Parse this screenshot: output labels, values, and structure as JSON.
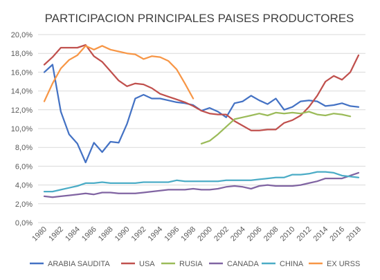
{
  "chart_data": {
    "type": "line",
    "title": "PARTICIPACION PRINCIPALES PAISES PRODUCTORES",
    "xlabel": "",
    "ylabel": "",
    "ylim": [
      0,
      20
    ],
    "ytick_labels": [
      "0,0%",
      "2,0%",
      "4,0%",
      "6,0%",
      "8,0%",
      "10,0%",
      "12,0%",
      "14,0%",
      "16,0%",
      "18,0%",
      "20,0%"
    ],
    "x_start": 1980,
    "x_end": 2018,
    "xtick_labels": [
      "1980",
      "1982",
      "1984",
      "1986",
      "1988",
      "1990",
      "1992",
      "1994",
      "1996",
      "1998",
      "2000",
      "2002",
      "2004",
      "2006",
      "2008",
      "2010",
      "2012",
      "2014",
      "2016",
      "2018"
    ],
    "grid": true,
    "legend_position": "bottom",
    "series": [
      {
        "name": "ARABIA SAUDITA",
        "color": "#4472C4",
        "start_year": 1980,
        "values": [
          16.0,
          16.8,
          11.8,
          9.4,
          8.4,
          6.4,
          8.5,
          7.5,
          8.6,
          8.5,
          10.5,
          13.2,
          13.6,
          13.2,
          13.2,
          13.0,
          12.8,
          12.7,
          12.5,
          11.9,
          12.2,
          11.8,
          11.2,
          12.7,
          12.9,
          13.5,
          13.0,
          12.6,
          13.2,
          12.0,
          12.3,
          12.9,
          13.0,
          12.9,
          12.4,
          12.5,
          12.7,
          12.4,
          12.3
        ]
      },
      {
        "name": "USA",
        "color": "#C0504D",
        "start_year": 1980,
        "values": [
          16.8,
          17.6,
          18.6,
          18.6,
          18.6,
          18.9,
          17.7,
          17.1,
          16.1,
          15.1,
          14.5,
          14.8,
          14.7,
          14.3,
          13.7,
          13.4,
          13.1,
          12.8,
          12.4,
          11.9,
          11.6,
          11.5,
          11.5,
          10.8,
          10.3,
          9.8,
          9.8,
          9.9,
          9.9,
          10.6,
          10.9,
          11.4,
          12.3,
          13.5,
          15.0,
          15.6,
          15.2,
          16.0,
          17.8
        ]
      },
      {
        "name": "RUSIA",
        "color": "#9BBB59",
        "start_year": 1999,
        "values": [
          8.4,
          8.7,
          9.4,
          10.2,
          11.0,
          11.2,
          11.4,
          11.6,
          11.4,
          11.7,
          11.6,
          11.7,
          11.6,
          11.8,
          11.5,
          11.4,
          11.6,
          11.5,
          11.3
        ]
      },
      {
        "name": "CANADA",
        "color": "#8064A2",
        "start_year": 1980,
        "values": [
          2.8,
          2.7,
          2.8,
          2.9,
          3.0,
          3.1,
          3.0,
          3.2,
          3.2,
          3.1,
          3.1,
          3.1,
          3.2,
          3.3,
          3.4,
          3.5,
          3.5,
          3.5,
          3.6,
          3.5,
          3.5,
          3.6,
          3.8,
          3.9,
          3.8,
          3.6,
          3.9,
          4.0,
          3.9,
          3.9,
          3.9,
          4.0,
          4.2,
          4.4,
          4.7,
          4.7,
          4.7,
          5.0,
          5.3
        ]
      },
      {
        "name": "CHINA",
        "color": "#4BACC6",
        "start_year": 1980,
        "values": [
          3.3,
          3.3,
          3.5,
          3.7,
          3.9,
          4.2,
          4.2,
          4.3,
          4.2,
          4.2,
          4.2,
          4.2,
          4.3,
          4.3,
          4.3,
          4.3,
          4.5,
          4.4,
          4.4,
          4.4,
          4.4,
          4.4,
          4.5,
          4.5,
          4.5,
          4.5,
          4.6,
          4.7,
          4.8,
          4.8,
          5.1,
          5.1,
          5.2,
          5.4,
          5.4,
          5.3,
          5.0,
          4.9,
          4.8
        ]
      },
      {
        "name": "EX URSS",
        "color": "#F79646",
        "start_year": 1980,
        "values": [
          12.9,
          14.8,
          16.4,
          17.3,
          17.8,
          18.8,
          18.4,
          18.8,
          18.4,
          18.2,
          18.0,
          17.9,
          17.4,
          17.7,
          17.6,
          17.2,
          16.3,
          14.8,
          13.2
        ]
      }
    ]
  }
}
